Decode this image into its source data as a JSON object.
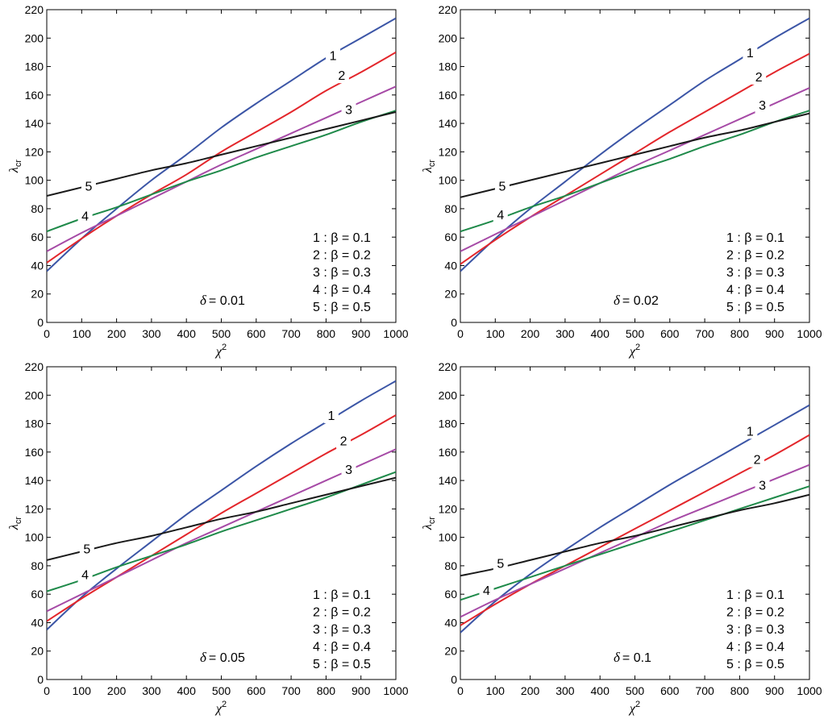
{
  "colors": {
    "1": "#3b55a6",
    "2": "#e3262b",
    "3": "#a64aa6",
    "4": "#1f8a4a",
    "5": "#1a1a1a"
  },
  "chart_data": [
    {
      "type": "line",
      "annotation": "δ = 0.01",
      "delta_symbol": "δ",
      "delta_value": "= 0.01",
      "xlabel": "χ",
      "xlabel_sup": "2",
      "ylabel": "λ",
      "ylabel_sub": "cr",
      "xlim": [
        0,
        1000
      ],
      "ylim": [
        0,
        220
      ],
      "xticks": [
        0,
        100,
        200,
        300,
        400,
        500,
        600,
        700,
        800,
        900,
        1000
      ],
      "yticks": [
        0,
        20,
        40,
        60,
        80,
        100,
        120,
        140,
        160,
        180,
        200,
        220
      ],
      "legend": [
        "1 : β = 0.1",
        "2 : β = 0.2",
        "3 : β = 0.3",
        "4 : β = 0.4",
        "5 : β = 0.5"
      ],
      "series": [
        {
          "name": "1",
          "x": [
            0,
            100,
            200,
            300,
            400,
            500,
            600,
            700,
            800,
            900,
            1000
          ],
          "values": [
            36,
            59,
            80,
            100,
            118,
            137,
            154,
            170,
            186,
            200,
            214
          ]
        },
        {
          "name": "2",
          "x": [
            0,
            100,
            200,
            300,
            400,
            500,
            600,
            700,
            800,
            900,
            1000
          ],
          "values": [
            42,
            59,
            75,
            90,
            104,
            120,
            134,
            148,
            163,
            176,
            190
          ]
        },
        {
          "name": "3",
          "x": [
            0,
            100,
            200,
            300,
            400,
            500,
            600,
            700,
            800,
            900,
            1000
          ],
          "values": [
            50,
            63,
            75,
            87,
            99,
            111,
            122,
            133,
            144,
            155,
            166
          ]
        },
        {
          "name": "4",
          "x": [
            0,
            100,
            200,
            300,
            400,
            500,
            600,
            700,
            800,
            900,
            1000
          ],
          "values": [
            64,
            73,
            81,
            90,
            99,
            107,
            116,
            124,
            132,
            141,
            149
          ]
        },
        {
          "name": "5",
          "x": [
            0,
            100,
            200,
            300,
            400,
            500,
            600,
            700,
            800,
            900,
            1000
          ],
          "values": [
            89,
            95,
            101,
            107,
            112,
            118,
            124,
            130,
            136,
            142,
            148
          ]
        }
      ],
      "curve_labels": [
        {
          "text": "1",
          "x": 820,
          "y": 188
        },
        {
          "text": "2",
          "x": 845,
          "y": 174
        },
        {
          "text": "3",
          "x": 865,
          "y": 150
        },
        {
          "text": "4",
          "x": 110,
          "y": 75
        },
        {
          "text": "5",
          "x": 120,
          "y": 96
        }
      ]
    },
    {
      "type": "line",
      "annotation": "δ = 0.02",
      "delta_symbol": "δ",
      "delta_value": "= 0.02",
      "xlabel": "χ",
      "xlabel_sup": "2",
      "ylabel": "λ",
      "ylabel_sub": "cr",
      "xlim": [
        0,
        1000
      ],
      "ylim": [
        0,
        220
      ],
      "xticks": [
        0,
        100,
        200,
        300,
        400,
        500,
        600,
        700,
        800,
        900,
        1000
      ],
      "yticks": [
        0,
        20,
        40,
        60,
        80,
        100,
        120,
        140,
        160,
        180,
        200,
        220
      ],
      "legend": [
        "1 : β = 0.1",
        "2 : β = 0.2",
        "3 : β = 0.3",
        "4 : β = 0.4",
        "5 : β = 0.5"
      ],
      "series": [
        {
          "name": "1",
          "x": [
            0,
            100,
            200,
            300,
            400,
            500,
            600,
            700,
            800,
            900,
            1000
          ],
          "values": [
            36,
            59,
            80,
            99,
            118,
            136,
            153,
            170,
            185,
            200,
            214
          ]
        },
        {
          "name": "2",
          "x": [
            0,
            100,
            200,
            300,
            400,
            500,
            600,
            700,
            800,
            900,
            1000
          ],
          "values": [
            41,
            58,
            74,
            89,
            104,
            119,
            134,
            148,
            162,
            176,
            189
          ]
        },
        {
          "name": "3",
          "x": [
            0,
            100,
            200,
            300,
            400,
            500,
            600,
            700,
            800,
            900,
            1000
          ],
          "values": [
            50,
            62,
            74,
            86,
            98,
            110,
            121,
            132,
            143,
            154,
            165
          ]
        },
        {
          "name": "4",
          "x": [
            0,
            100,
            200,
            300,
            400,
            500,
            600,
            700,
            800,
            900,
            1000
          ],
          "values": [
            64,
            72,
            81,
            89,
            98,
            107,
            115,
            124,
            132,
            141,
            149
          ]
        },
        {
          "name": "5",
          "x": [
            0,
            100,
            200,
            300,
            400,
            500,
            600,
            700,
            800,
            900,
            1000
          ],
          "values": [
            88,
            94,
            100,
            106,
            112,
            118,
            124,
            130,
            135,
            141,
            147
          ]
        }
      ],
      "curve_labels": [
        {
          "text": "1",
          "x": 830,
          "y": 190
        },
        {
          "text": "2",
          "x": 855,
          "y": 173
        },
        {
          "text": "3",
          "x": 865,
          "y": 153
        },
        {
          "text": "4",
          "x": 115,
          "y": 76
        },
        {
          "text": "5",
          "x": 120,
          "y": 96
        }
      ]
    },
    {
      "type": "line",
      "annotation": "δ = 0.05",
      "delta_symbol": "δ",
      "delta_value": "= 0.05",
      "xlabel": "χ",
      "xlabel_sup": "2",
      "ylabel": "λ",
      "ylabel_sub": "cr",
      "xlim": [
        0,
        1000
      ],
      "ylim": [
        0,
        220
      ],
      "xticks": [
        0,
        100,
        200,
        300,
        400,
        500,
        600,
        700,
        800,
        900,
        1000
      ],
      "yticks": [
        0,
        20,
        40,
        60,
        80,
        100,
        120,
        140,
        160,
        180,
        200,
        220
      ],
      "legend": [
        "1 : β = 0.1",
        "2 : β = 0.2",
        "3 : β = 0.3",
        "4 : β = 0.4",
        "5 : β = 0.5"
      ],
      "series": [
        {
          "name": "1",
          "x": [
            0,
            100,
            200,
            300,
            400,
            500,
            600,
            700,
            800,
            900,
            1000
          ],
          "values": [
            35,
            58,
            78,
            97,
            116,
            133,
            150,
            166,
            181,
            196,
            210
          ]
        },
        {
          "name": "2",
          "x": [
            0,
            100,
            200,
            300,
            400,
            500,
            600,
            700,
            800,
            900,
            1000
          ],
          "values": [
            41,
            57,
            72,
            87,
            102,
            117,
            131,
            145,
            159,
            172,
            186
          ]
        },
        {
          "name": "3",
          "x": [
            0,
            100,
            200,
            300,
            400,
            500,
            600,
            700,
            800,
            900,
            1000
          ],
          "values": [
            48,
            60,
            72,
            84,
            96,
            107,
            118,
            129,
            140,
            151,
            162
          ]
        },
        {
          "name": "4",
          "x": [
            0,
            100,
            200,
            300,
            400,
            500,
            600,
            700,
            800,
            900,
            1000
          ],
          "values": [
            62,
            70,
            79,
            87,
            95,
            104,
            112,
            120,
            128,
            137,
            146
          ]
        },
        {
          "name": "5",
          "x": [
            0,
            100,
            200,
            300,
            400,
            500,
            600,
            700,
            800,
            900,
            1000
          ],
          "values": [
            84,
            90,
            96,
            101,
            107,
            113,
            118,
            124,
            130,
            136,
            142
          ]
        }
      ],
      "curve_labels": [
        {
          "text": "1",
          "x": 815,
          "y": 186
        },
        {
          "text": "2",
          "x": 850,
          "y": 168
        },
        {
          "text": "3",
          "x": 865,
          "y": 148
        },
        {
          "text": "4",
          "x": 110,
          "y": 74
        },
        {
          "text": "5",
          "x": 115,
          "y": 92
        }
      ]
    },
    {
      "type": "line",
      "annotation": "δ = 0.1",
      "delta_symbol": "δ",
      "delta_value": "= 0.1",
      "xlabel": "χ",
      "xlabel_sup": "2",
      "ylabel": "λ",
      "ylabel_sub": "cr",
      "xlim": [
        0,
        1000
      ],
      "ylim": [
        0,
        220
      ],
      "xticks": [
        0,
        100,
        200,
        300,
        400,
        500,
        600,
        700,
        800,
        900,
        1000
      ],
      "yticks": [
        0,
        20,
        40,
        60,
        80,
        100,
        120,
        140,
        160,
        180,
        200,
        220
      ],
      "legend": [
        "1 : β = 0.1",
        "2 : β = 0.2",
        "3 : β = 0.3",
        "4 : β = 0.4",
        "5 : β = 0.5"
      ],
      "series": [
        {
          "name": "1",
          "x": [
            0,
            100,
            200,
            300,
            400,
            500,
            600,
            700,
            800,
            900,
            1000
          ],
          "values": [
            33,
            55,
            74,
            91,
            107,
            122,
            137,
            151,
            165,
            179,
            193
          ]
        },
        {
          "name": "2",
          "x": [
            0,
            100,
            200,
            300,
            400,
            500,
            600,
            700,
            800,
            900,
            1000
          ],
          "values": [
            38,
            53,
            67,
            80,
            93,
            106,
            119,
            132,
            145,
            158,
            172
          ]
        },
        {
          "name": "3",
          "x": [
            0,
            100,
            200,
            300,
            400,
            500,
            600,
            700,
            800,
            900,
            1000
          ],
          "values": [
            44,
            56,
            67,
            78,
            89,
            100,
            111,
            121,
            131,
            141,
            151
          ]
        },
        {
          "name": "4",
          "x": [
            0,
            100,
            200,
            300,
            400,
            500,
            600,
            700,
            800,
            900,
            1000
          ],
          "values": [
            56,
            64,
            72,
            80,
            88,
            96,
            104,
            112,
            120,
            128,
            136
          ]
        },
        {
          "name": "5",
          "x": [
            0,
            100,
            200,
            300,
            400,
            500,
            600,
            700,
            800,
            900,
            1000
          ],
          "values": [
            73,
            78,
            84,
            90,
            96,
            101,
            107,
            113,
            119,
            124,
            130
          ]
        }
      ],
      "curve_labels": [
        {
          "text": "1",
          "x": 830,
          "y": 175
        },
        {
          "text": "2",
          "x": 850,
          "y": 155
        },
        {
          "text": "3",
          "x": 865,
          "y": 137
        },
        {
          "text": "4",
          "x": 75,
          "y": 63
        },
        {
          "text": "5",
          "x": 115,
          "y": 82
        }
      ]
    }
  ]
}
